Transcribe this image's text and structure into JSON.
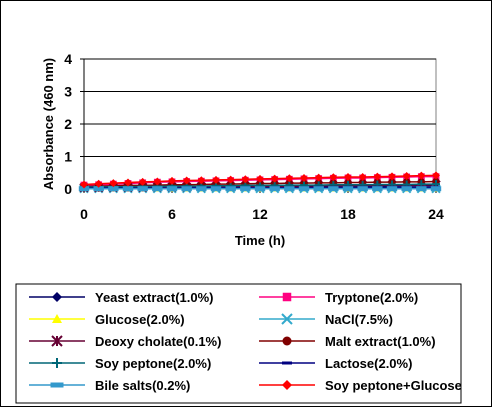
{
  "chart_data": {
    "type": "line",
    "title": "",
    "xlabel": "Time (h)",
    "ylabel": "Absorbance (460 nm)",
    "xlim": [
      0,
      24
    ],
    "ylim": [
      0,
      4
    ],
    "x_ticks": [
      "0",
      "6",
      "12",
      "18",
      "24"
    ],
    "y_ticks": [
      "0",
      "1",
      "2",
      "3",
      "4"
    ],
    "grid": "horizontal",
    "legend_position": "bottom",
    "x": [
      0,
      1,
      2,
      3,
      4,
      5,
      6,
      7,
      8,
      9,
      10,
      11,
      12,
      13,
      14,
      15,
      16,
      17,
      18,
      19,
      20,
      21,
      22,
      23,
      24
    ],
    "series": [
      {
        "name": "Yeast extract(1.0%)",
        "color": "#000066",
        "marker": "diamond",
        "values": [
          0.05,
          0.05,
          0.05,
          0.05,
          0.06,
          0.06,
          0.06,
          0.06,
          0.07,
          0.07,
          0.07,
          0.07,
          0.08,
          0.08,
          0.08,
          0.08,
          0.08,
          0.09,
          0.09,
          0.09,
          0.09,
          0.09,
          0.1,
          0.1,
          0.1
        ]
      },
      {
        "name": "Tryptone(2.0%)",
        "color": "#ff0080",
        "marker": "square",
        "values": [
          0.12,
          0.13,
          0.15,
          0.17,
          0.19,
          0.21,
          0.22,
          0.23,
          0.24,
          0.25,
          0.26,
          0.27,
          0.28,
          0.29,
          0.3,
          0.31,
          0.32,
          0.33,
          0.34,
          0.34,
          0.35,
          0.36,
          0.37,
          0.38,
          0.38
        ]
      },
      {
        "name": "Glucose(2.0%)",
        "color": "#ffff00",
        "marker": "triangle",
        "values": [
          0.02,
          0.02,
          0.02,
          0.02,
          0.02,
          0.02,
          0.02,
          0.02,
          0.02,
          0.02,
          0.02,
          0.02,
          0.02,
          0.02,
          0.02,
          0.02,
          0.02,
          0.02,
          0.02,
          0.02,
          0.02,
          0.02,
          0.02,
          0.02,
          0.02
        ]
      },
      {
        "name": "NaCl(7.5%)",
        "color": "#33aacc",
        "marker": "x",
        "values": [
          0.01,
          0.01,
          0.01,
          0.01,
          0.01,
          0.01,
          0.01,
          0.01,
          0.01,
          0.01,
          0.01,
          0.01,
          0.01,
          0.01,
          0.01,
          0.01,
          0.01,
          0.01,
          0.01,
          0.01,
          0.01,
          0.01,
          0.01,
          0.01,
          0.01
        ]
      },
      {
        "name": "Deoxy cholate(0.1%)",
        "color": "#660033",
        "marker": "star",
        "values": [
          0.04,
          0.04,
          0.05,
          0.05,
          0.05,
          0.06,
          0.06,
          0.06,
          0.07,
          0.07,
          0.07,
          0.08,
          0.08,
          0.08,
          0.09,
          0.09,
          0.1,
          0.1,
          0.1,
          0.11,
          0.11,
          0.12,
          0.12,
          0.12,
          0.13
        ]
      },
      {
        "name": "Malt extract(1.0%)",
        "color": "#800000",
        "marker": "circle",
        "values": [
          0.08,
          0.09,
          0.1,
          0.11,
          0.11,
          0.12,
          0.13,
          0.13,
          0.14,
          0.15,
          0.15,
          0.16,
          0.17,
          0.17,
          0.18,
          0.18,
          0.19,
          0.19,
          0.2,
          0.2,
          0.21,
          0.21,
          0.22,
          0.22,
          0.23
        ]
      },
      {
        "name": "Soy peptone(2.0%)",
        "color": "#006677",
        "marker": "plus",
        "values": [
          0.06,
          0.06,
          0.07,
          0.07,
          0.08,
          0.08,
          0.09,
          0.09,
          0.09,
          0.1,
          0.1,
          0.11,
          0.11,
          0.11,
          0.12,
          0.12,
          0.12,
          0.13,
          0.13,
          0.13,
          0.14,
          0.14,
          0.14,
          0.15,
          0.15
        ]
      },
      {
        "name": "Lactose(2.0%)",
        "color": "#000080",
        "marker": "dash",
        "values": [
          0.03,
          0.03,
          0.03,
          0.03,
          0.03,
          0.03,
          0.03,
          0.04,
          0.04,
          0.04,
          0.04,
          0.04,
          0.04,
          0.04,
          0.04,
          0.04,
          0.05,
          0.05,
          0.05,
          0.05,
          0.05,
          0.05,
          0.05,
          0.05,
          0.05
        ]
      },
      {
        "name": "Bile salts(0.2%)",
        "color": "#3399cc",
        "marker": "bar",
        "values": [
          0.01,
          0.01,
          0.01,
          0.01,
          0.01,
          0.01,
          0.01,
          0.01,
          0.01,
          0.01,
          0.01,
          0.01,
          0.01,
          0.01,
          0.01,
          0.01,
          0.01,
          0.01,
          0.01,
          0.01,
          0.01,
          0.01,
          0.01,
          0.01,
          0.01
        ]
      },
      {
        "name": "Soy peptone+Glucose",
        "color": "#ff0000",
        "marker": "diamond",
        "values": [
          0.14,
          0.16,
          0.18,
          0.2,
          0.22,
          0.23,
          0.25,
          0.26,
          0.27,
          0.28,
          0.29,
          0.3,
          0.31,
          0.32,
          0.33,
          0.34,
          0.35,
          0.36,
          0.37,
          0.37,
          0.38,
          0.39,
          0.4,
          0.41,
          0.42
        ]
      }
    ]
  }
}
